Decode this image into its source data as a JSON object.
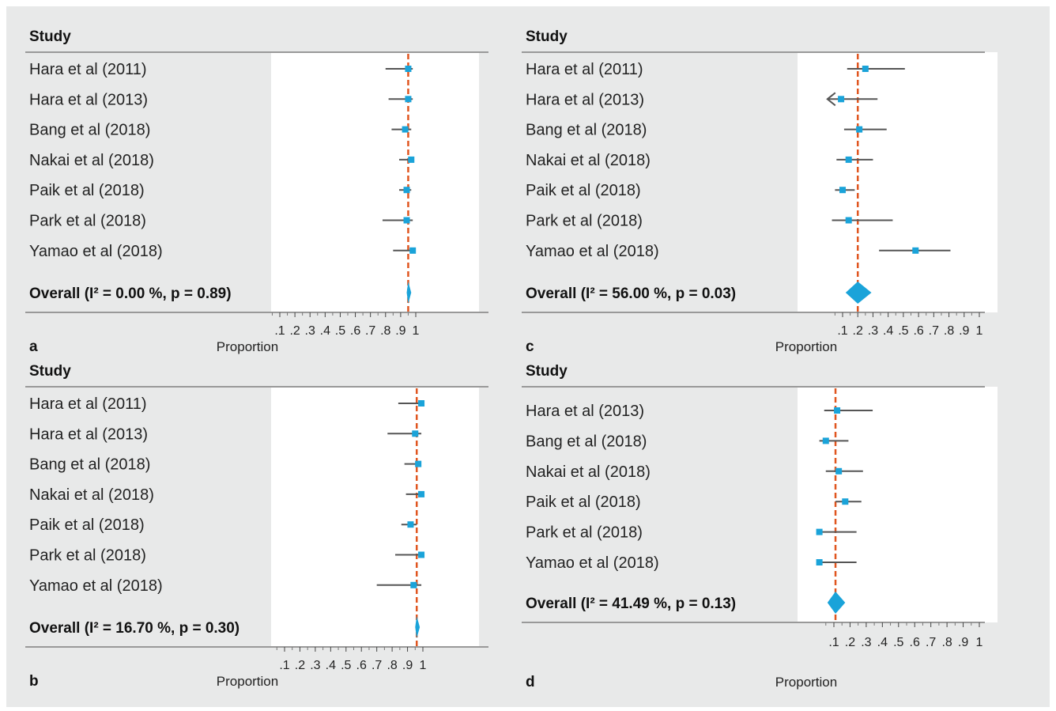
{
  "chart_data": [
    {
      "type": "forest",
      "panel": "a",
      "header": "Study",
      "xlabel": "Proportion",
      "xlim": [
        0,
        1
      ],
      "ticks": [
        ".1",
        ".2",
        ".3",
        ".4",
        ".5",
        ".6",
        ".7",
        ".8",
        ".9",
        "1"
      ],
      "tick_values": [
        0.1,
        0.2,
        0.3,
        0.4,
        0.5,
        0.6,
        0.7,
        0.8,
        0.9,
        1.0
      ],
      "pooled_estimate": 0.95,
      "studies": [
        {
          "label": "Hara et al (2011)",
          "estimate": 0.95,
          "lower": 0.8,
          "upper": 0.98
        },
        {
          "label": "Hara et al (2013)",
          "estimate": 0.95,
          "lower": 0.82,
          "upper": 0.98
        },
        {
          "label": "Bang et al (2018)",
          "estimate": 0.93,
          "lower": 0.84,
          "upper": 0.97
        },
        {
          "label": "Nakai et al (2018)",
          "estimate": 0.97,
          "lower": 0.89,
          "upper": 0.98
        },
        {
          "label": "Paik et al (2018)",
          "estimate": 0.94,
          "lower": 0.89,
          "upper": 0.97
        },
        {
          "label": "Park et al (2018)",
          "estimate": 0.94,
          "lower": 0.78,
          "upper": 0.98
        },
        {
          "label": "Yamao et al (2018)",
          "estimate": 0.98,
          "lower": 0.85,
          "upper": 0.98
        }
      ],
      "overall": {
        "label": "Overall (I² = 0.00 %, p = 0.89)",
        "estimate": 0.95,
        "lower": 0.94,
        "upper": 0.97
      }
    },
    {
      "type": "forest",
      "panel": "b",
      "header": "Study",
      "xlabel": "Proportion",
      "xlim": [
        0,
        1
      ],
      "ticks": [
        ".1",
        ".2",
        ".3",
        ".4",
        ".5",
        ".6",
        ".7",
        ".8",
        ".9",
        "1"
      ],
      "tick_values": [
        0.1,
        0.2,
        0.3,
        0.4,
        0.5,
        0.6,
        0.7,
        0.8,
        0.9,
        1.0
      ],
      "pooled_estimate": 0.96,
      "studies": [
        {
          "label": "Hara et al (2011)",
          "estimate": 0.99,
          "lower": 0.84,
          "upper": 0.99
        },
        {
          "label": "Hara et al (2013)",
          "estimate": 0.95,
          "lower": 0.77,
          "upper": 0.99
        },
        {
          "label": "Bang et al (2018)",
          "estimate": 0.97,
          "lower": 0.88,
          "upper": 0.98
        },
        {
          "label": "Nakai et al (2018)",
          "estimate": 0.99,
          "lower": 0.89,
          "upper": 0.99
        },
        {
          "label": "Paik et al (2018)",
          "estimate": 0.92,
          "lower": 0.86,
          "upper": 0.96
        },
        {
          "label": "Park et al (2018)",
          "estimate": 0.99,
          "lower": 0.82,
          "upper": 0.99
        },
        {
          "label": "Yamao et al (2018)",
          "estimate": 0.94,
          "lower": 0.7,
          "upper": 0.99
        }
      ],
      "overall": {
        "label": "Overall (I² = 16.70 %, p = 0.30)",
        "estimate": 0.96,
        "lower": 0.95,
        "upper": 0.98
      }
    },
    {
      "type": "forest",
      "panel": "c",
      "header": "Study",
      "xlabel": "Proportion",
      "xlim": [
        0,
        1
      ],
      "ticks": [
        ".1",
        ".2",
        ".3",
        ".4",
        ".5",
        ".6",
        ".7",
        ".8",
        ".9",
        "1"
      ],
      "tick_values": [
        0.1,
        0.2,
        0.3,
        0.4,
        0.5,
        0.6,
        0.7,
        0.8,
        0.9,
        1.0
      ],
      "pooled_estimate": 0.2,
      "studies": [
        {
          "label": "Hara et al (2011)",
          "estimate": 0.25,
          "lower": 0.13,
          "upper": 0.51
        },
        {
          "label": "Hara et al (2013)",
          "estimate": 0.09,
          "lower": 0.0,
          "upper": 0.33,
          "truncated_left": true
        },
        {
          "label": "Bang et al (2018)",
          "estimate": 0.21,
          "lower": 0.11,
          "upper": 0.39
        },
        {
          "label": "Nakai et al (2018)",
          "estimate": 0.14,
          "lower": 0.06,
          "upper": 0.3
        },
        {
          "label": "Paik et al (2018)",
          "estimate": 0.1,
          "lower": 0.05,
          "upper": 0.18
        },
        {
          "label": "Park et al (2018)",
          "estimate": 0.14,
          "lower": 0.03,
          "upper": 0.43
        },
        {
          "label": "Yamao et al (2018)",
          "estimate": 0.58,
          "lower": 0.34,
          "upper": 0.81
        }
      ],
      "overall": {
        "label": "Overall (I² = 56.00 %, p = 0.03)",
        "estimate": 0.2,
        "lower": 0.12,
        "upper": 0.29
      }
    },
    {
      "type": "forest",
      "panel": "d",
      "header": "Study",
      "xlabel": "Proportion",
      "xlim": [
        0,
        1
      ],
      "ticks": [
        ".1",
        ".2",
        ".3",
        ".4",
        ".5",
        ".6",
        ".7",
        ".8",
        ".9",
        "1"
      ],
      "tick_values": [
        0.1,
        0.2,
        0.3,
        0.4,
        0.5,
        0.6,
        0.7,
        0.8,
        0.9,
        1.0
      ],
      "pooled_estimate": 0.11,
      "studies": [
        {
          "label": "Hara et al (2013)",
          "estimate": 0.12,
          "lower": 0.04,
          "upper": 0.34
        },
        {
          "label": "Bang et al (2018)",
          "estimate": 0.05,
          "lower": 0.01,
          "upper": 0.19
        },
        {
          "label": "Nakai et al (2018)",
          "estimate": 0.13,
          "lower": 0.05,
          "upper": 0.28
        },
        {
          "label": "Paik et al (2018)",
          "estimate": 0.17,
          "lower": 0.11,
          "upper": 0.27
        },
        {
          "label": "Park et al (2018)",
          "estimate": 0.01,
          "lower": 0.0,
          "upper": 0.24
        },
        {
          "label": "Yamao et al (2018)",
          "estimate": 0.01,
          "lower": 0.0,
          "upper": 0.24
        }
      ],
      "overall": {
        "label": "Overall (I² = 41.49 %, p = 0.13)",
        "estimate": 0.11,
        "lower": 0.06,
        "upper": 0.17
      }
    }
  ],
  "colors": {
    "background": "#e8e9e9",
    "plot_area": "#ffffff",
    "marker": "#1aa3d9",
    "ci_line": "#555555",
    "reference_line": "#e0551f",
    "rule": "#999999"
  }
}
